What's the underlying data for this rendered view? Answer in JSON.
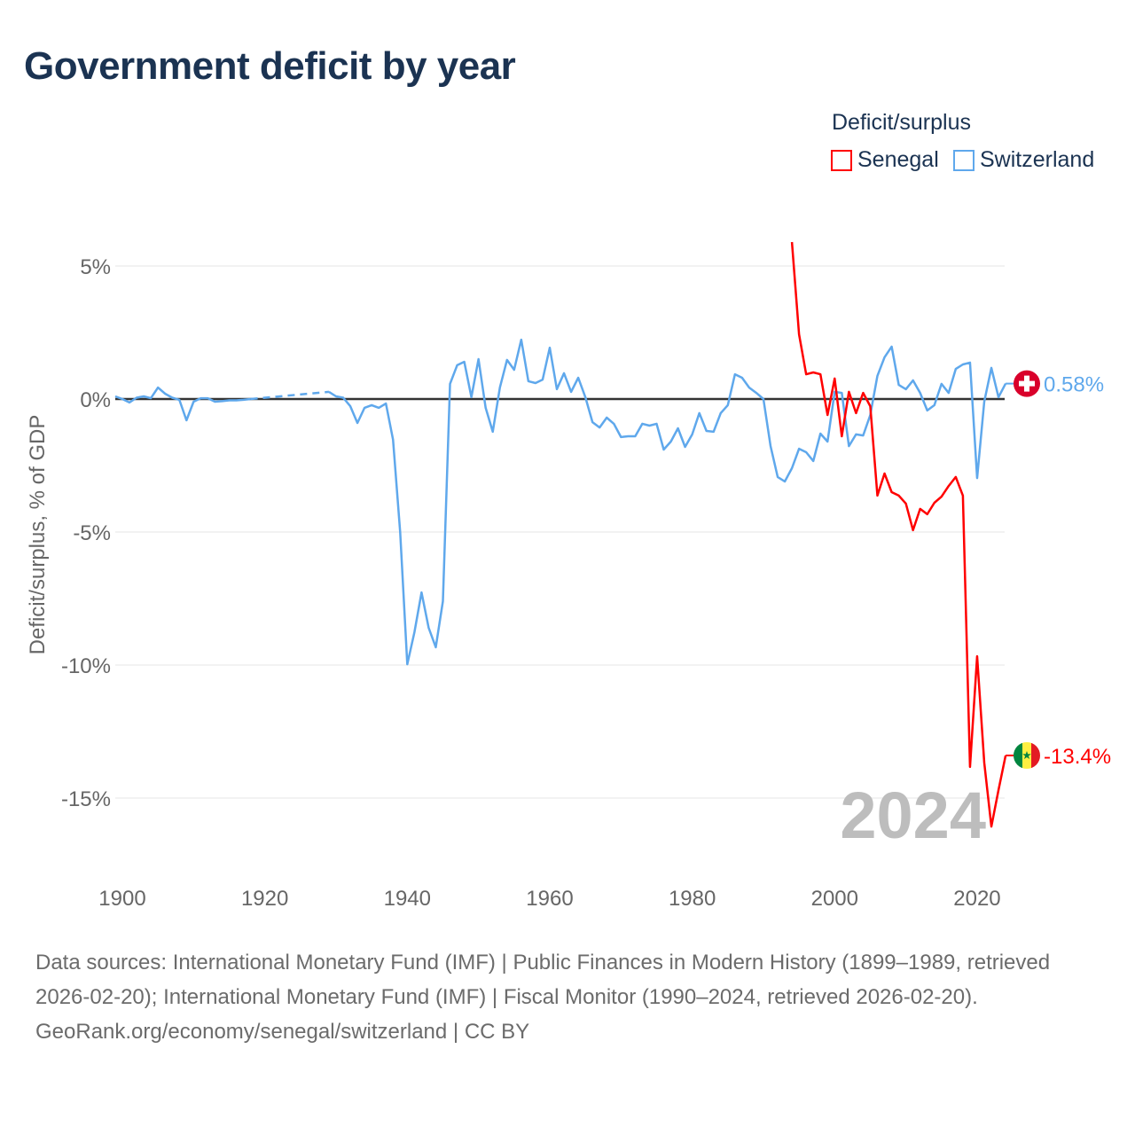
{
  "title": "Government deficit by year",
  "legend": {
    "title": "Deficit/surplus",
    "items": [
      {
        "label": "Senegal",
        "color": "#ff0000"
      },
      {
        "label": "Switzerland",
        "color": "#5fa8ec"
      }
    ]
  },
  "year_label": "2024",
  "footer": {
    "sources": "Data sources: International Monetary Fund (IMF) | Public Finances in Modern History (1899–1989, retrieved 2026-02-20); International Monetary Fund (IMF) | Fiscal Monitor (1990–2024, retrieved 2026-02-20).",
    "credit": "GeoRank.org/economy/senegal/switzerland | CC BY"
  },
  "chart_data": {
    "type": "line",
    "title": "Government deficit by year",
    "xlabel": "",
    "ylabel": "Deficit/surplus, % of GDP",
    "xlim": [
      1899,
      2024
    ],
    "ylim": [
      -16.5,
      6
    ],
    "xticks": [
      {
        "v": 1900,
        "label": "1900"
      },
      {
        "v": 1920,
        "label": "1920"
      },
      {
        "v": 1940,
        "label": "1940"
      },
      {
        "v": 1960,
        "label": "1960"
      },
      {
        "v": 1980,
        "label": "1980"
      },
      {
        "v": 2000,
        "label": "2000"
      },
      {
        "v": 2020,
        "label": "2020"
      }
    ],
    "yticks": [
      {
        "v": 5,
        "label": "5%"
      },
      {
        "v": 0,
        "label": "0%"
      },
      {
        "v": -5,
        "label": "-5%"
      },
      {
        "v": -10,
        "label": "-10%"
      },
      {
        "v": -15,
        "label": "-15%"
      }
    ],
    "grid": true,
    "legend_position": "top-right",
    "series": [
      {
        "name": "Switzerland",
        "color": "#5fa8ec",
        "end_label": "0.58%",
        "flag": "switzerland",
        "x0": 1899,
        "values": [
          0.1,
          0,
          -0.13,
          0.05,
          0.1,
          0.03,
          0.43,
          0.2,
          0.05,
          -0.03,
          -0.8,
          -0.1,
          0.03,
          0.03,
          -0.1,
          -0.08,
          -0.05,
          -0.05,
          -0.03,
          0,
          null,
          null,
          null,
          null,
          null,
          null,
          null,
          null,
          null,
          null,
          0.27,
          0.1,
          0.05,
          -0.27,
          -0.9,
          -0.33,
          -0.23,
          -0.33,
          -0.17,
          -1.53,
          -5.0,
          -9.97,
          -8.77,
          -7.27,
          -8.6,
          -9.33,
          -7.6,
          0.57,
          1.27,
          1.4,
          0.07,
          1.5,
          -0.33,
          -1.23,
          0.43,
          1.47,
          1.1,
          2.23,
          0.67,
          0.6,
          0.73,
          1.93,
          0.37,
          0.97,
          0.27,
          0.8,
          0.07,
          -0.87,
          -1.07,
          -0.7,
          -0.93,
          -1.43,
          -1.4,
          -1.4,
          -0.93,
          -1.0,
          -0.93,
          -1.9,
          -1.6,
          -1.1,
          -1.8,
          -1.33,
          -0.53,
          -1.2,
          -1.23,
          -0.53,
          -0.23,
          0.93,
          0.8,
          0.43,
          0.23,
          0,
          -1.77,
          -2.93,
          -3.1,
          -2.6,
          -1.87,
          -2.0,
          -2.33,
          -1.3,
          -1.6,
          0.27,
          0.23,
          -1.77,
          -1.33,
          -1.37,
          -0.6,
          0.87,
          1.57,
          1.97,
          0.53,
          0.37,
          0.7,
          0.23,
          -0.43,
          -0.23,
          0.57,
          0.23,
          1.13,
          1.3,
          1.37,
          -2.97,
          -0.1,
          1.17,
          0.07,
          0.58
        ]
      },
      {
        "name": "Senegal",
        "color": "#ff0000",
        "end_label": "-13.4%",
        "flag": "senegal",
        "x0": 1994,
        "values": [
          5.9,
          2.43,
          0.93,
          1.0,
          0.93,
          -0.6,
          0.77,
          -1.4,
          0.27,
          -0.53,
          0.23,
          -0.27,
          -3.63,
          -2.8,
          -3.5,
          -3.63,
          -3.93,
          -4.93,
          -4.13,
          -4.33,
          -3.9,
          -3.67,
          -3.27,
          -2.93,
          -3.63,
          -13.83,
          -9.67,
          -13.67,
          -16.07,
          -14.7,
          -13.4
        ]
      }
    ]
  }
}
